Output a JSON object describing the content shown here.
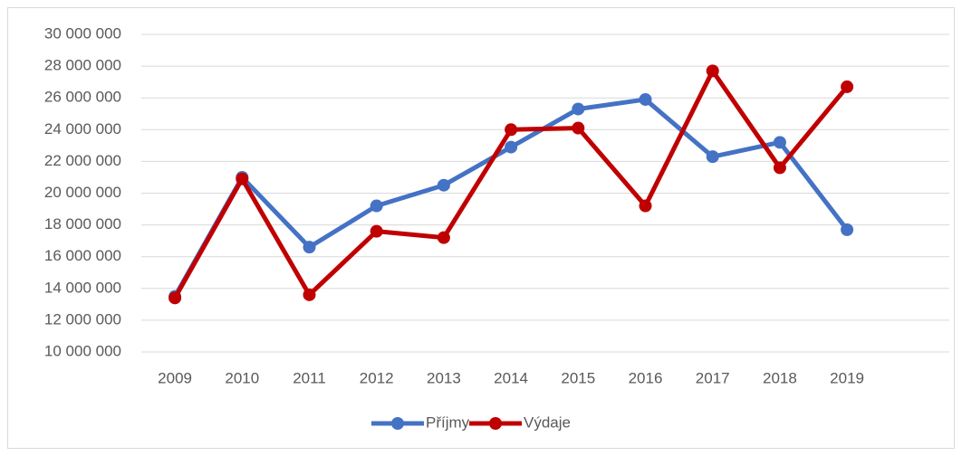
{
  "chart_data": {
    "type": "line",
    "categories": [
      "2009",
      "2010",
      "2011",
      "2012",
      "2013",
      "2014",
      "2015",
      "2016",
      "2017",
      "2018",
      "2019"
    ],
    "series": [
      {
        "name": "Příjmy",
        "color": "#4472c4",
        "values": [
          13500000,
          21000000,
          16600000,
          19200000,
          20500000,
          22900000,
          25300000,
          25900000,
          22300000,
          23200000,
          17700000
        ]
      },
      {
        "name": "Výdaje",
        "color": "#c00000",
        "values": [
          13400000,
          20900000,
          13600000,
          17600000,
          17200000,
          24000000,
          24100000,
          19200000,
          27700000,
          21600000,
          26700000
        ]
      }
    ],
    "ylim": [
      10000000,
      30000000
    ],
    "yticks": [
      {
        "value": 10000000,
        "label": "10 000 000"
      },
      {
        "value": 12000000,
        "label": "12 000 000"
      },
      {
        "value": 14000000,
        "label": "14 000 000"
      },
      {
        "value": 16000000,
        "label": "16 000 000"
      },
      {
        "value": 18000000,
        "label": "18 000 000"
      },
      {
        "value": 20000000,
        "label": "20 000 000"
      },
      {
        "value": 22000000,
        "label": "22 000 000"
      },
      {
        "value": 24000000,
        "label": "24 000 000"
      },
      {
        "value": 26000000,
        "label": "26 000 000"
      },
      {
        "value": 28000000,
        "label": "28 000 000"
      },
      {
        "value": 30000000,
        "label": "30 000 000"
      }
    ],
    "grid": true,
    "legend": "bottom"
  }
}
